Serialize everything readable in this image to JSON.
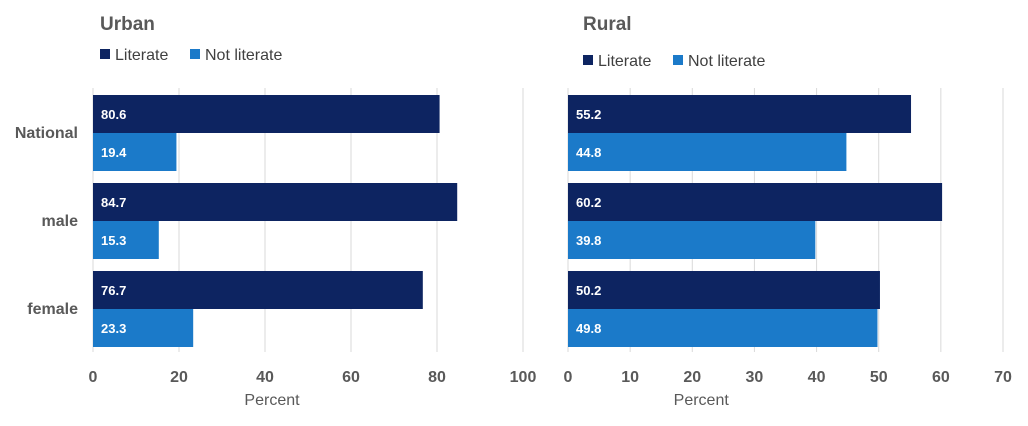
{
  "colors": {
    "literate": "#0d2461",
    "not_literate": "#1b7ac9"
  },
  "chart_data": [
    {
      "type": "bar",
      "orientation": "horizontal",
      "title": "Urban",
      "xlabel": "Percent",
      "ylabel": "",
      "categories": [
        "National",
        "male",
        "female"
      ],
      "series": [
        {
          "name": "Literate",
          "values": [
            80.6,
            84.7,
            76.7
          ]
        },
        {
          "name": "Not literate",
          "values": [
            19.4,
            15.3,
            23.3
          ]
        }
      ],
      "xlim": [
        0,
        100
      ],
      "xticks": [
        0,
        20,
        40,
        60,
        80,
        100
      ],
      "grid": true,
      "legend": "top-left"
    },
    {
      "type": "bar",
      "orientation": "horizontal",
      "title": "Rural",
      "xlabel": "Percent",
      "ylabel": "",
      "categories": [
        "National",
        "male",
        "female"
      ],
      "series": [
        {
          "name": "Literate",
          "values": [
            55.2,
            60.2,
            50.2
          ]
        },
        {
          "name": "Not literate",
          "values": [
            44.8,
            39.8,
            49.8
          ]
        }
      ],
      "xlim": [
        0,
        70
      ],
      "xticks": [
        0,
        10,
        20,
        30,
        40,
        50,
        60,
        70
      ],
      "grid": true,
      "legend": "top-left"
    }
  ]
}
